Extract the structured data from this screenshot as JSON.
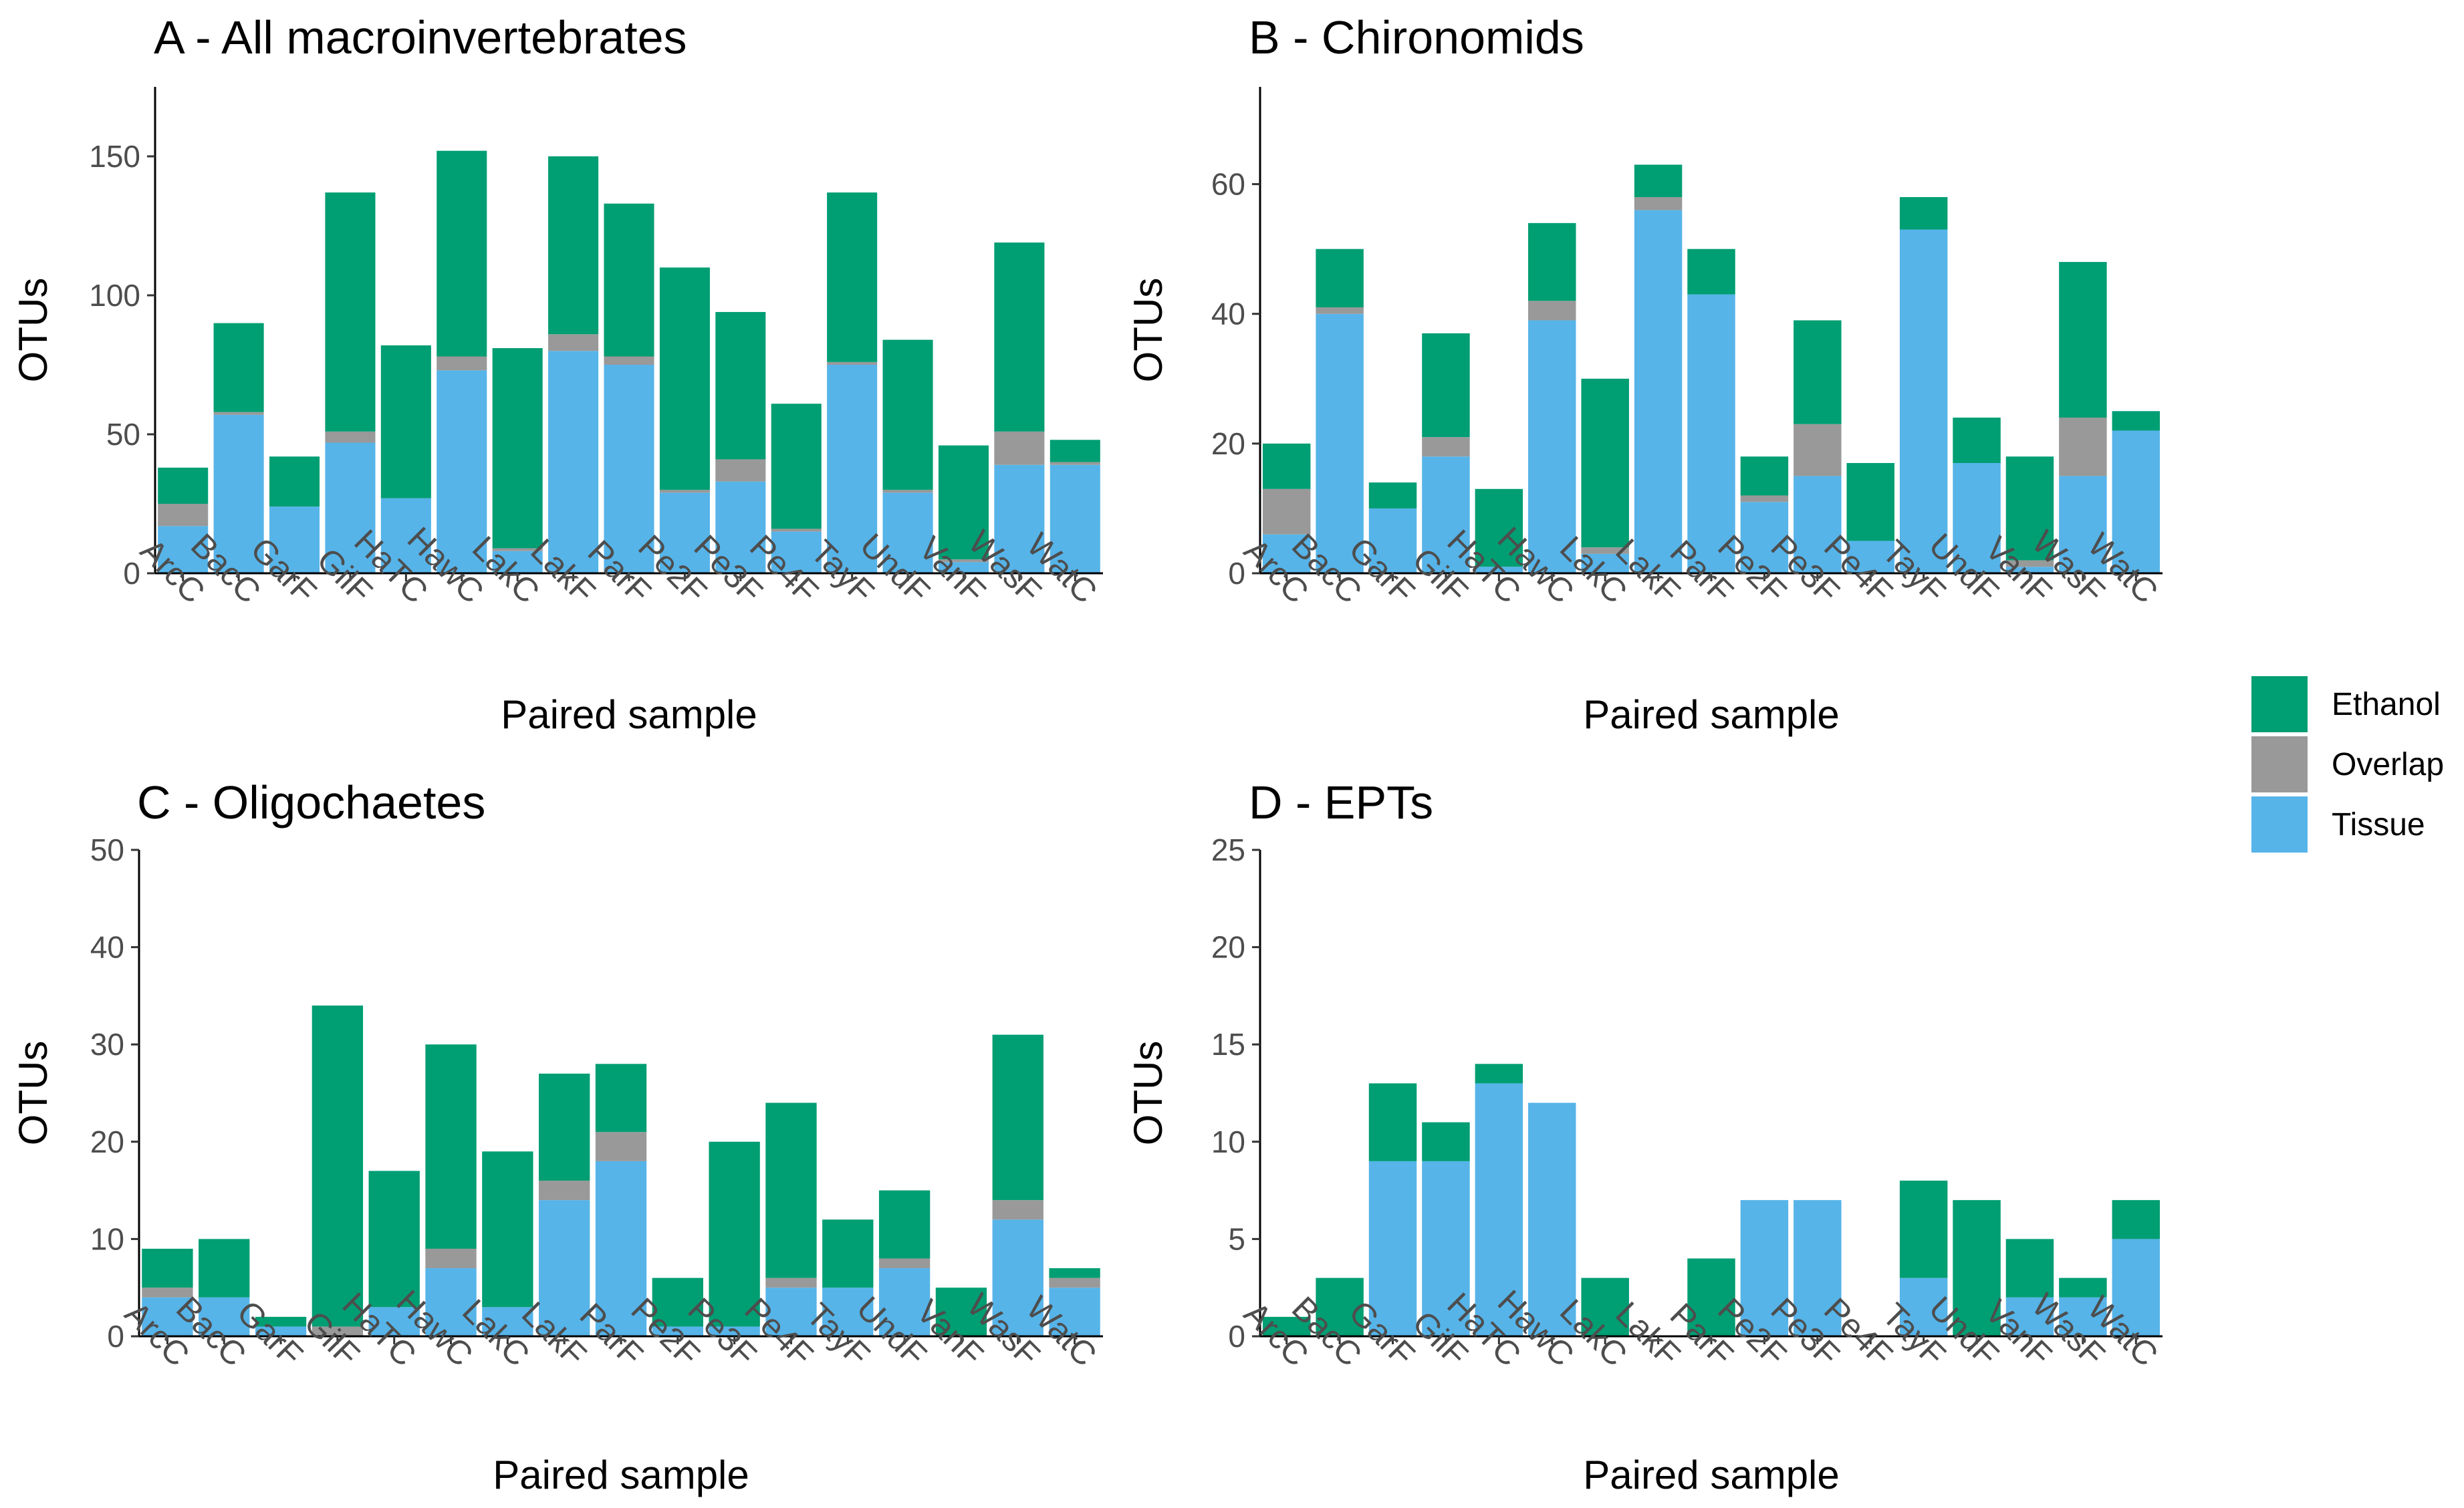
{
  "figure": {
    "legend": {
      "position": "right",
      "items": [
        {
          "name": "Ethanol",
          "color": "#009E73"
        },
        {
          "name": "Overlap",
          "color": "#999999"
        },
        {
          "name": "Tissue",
          "color": "#56B4E9"
        }
      ]
    }
  },
  "chart_data": [
    {
      "type": "bar",
      "stacked": true,
      "title": "A - All macroinvertebrates",
      "xlabel": "Paired sample",
      "ylabel": "OTUs",
      "ylim": [
        0,
        175
      ],
      "yticks": [
        0,
        50,
        100,
        150
      ],
      "categories": [
        "ArcC",
        "BacC",
        "GarF",
        "GilF",
        "HaTC",
        "HawC",
        "LakC",
        "LakF",
        "ParF",
        "Pe2F",
        "Pe3F",
        "Pe4F",
        "TayF",
        "UndF",
        "VanF",
        "WasF",
        "WatC"
      ],
      "series": [
        {
          "name": "Tissue",
          "values": [
            17,
            57,
            24,
            47,
            27,
            73,
            8,
            80,
            75,
            29,
            33,
            15,
            75,
            29,
            4,
            39,
            39
          ]
        },
        {
          "name": "Overlap",
          "values": [
            8,
            1,
            0,
            4,
            0,
            5,
            1,
            6,
            3,
            1,
            8,
            1,
            1,
            1,
            1,
            12,
            1
          ]
        },
        {
          "name": "Ethanol",
          "values": [
            13,
            32,
            18,
            86,
            55,
            74,
            72,
            64,
            55,
            80,
            53,
            45,
            61,
            54,
            41,
            68,
            8
          ]
        }
      ]
    },
    {
      "type": "bar",
      "stacked": true,
      "title": "B - Chironomids",
      "xlabel": "Paired sample",
      "ylabel": "OTUs",
      "ylim": [
        0,
        75
      ],
      "yticks": [
        0,
        20,
        40,
        60
      ],
      "categories": [
        "ArcC",
        "BacC",
        "GarF",
        "GilF",
        "HaTC",
        "HawC",
        "LakC",
        "LakF",
        "ParF",
        "Pe2F",
        "Pe3F",
        "Pe4F",
        "TayF",
        "UndF",
        "VanF",
        "WasF",
        "WatC"
      ],
      "series": [
        {
          "name": "Tissue",
          "values": [
            6,
            40,
            10,
            18,
            1,
            39,
            3,
            56,
            43,
            11,
            15,
            5,
            53,
            17,
            1,
            15,
            22
          ]
        },
        {
          "name": "Overlap",
          "values": [
            7,
            1,
            0,
            3,
            0,
            3,
            1,
            2,
            0,
            1,
            8,
            0,
            0,
            0,
            1,
            9,
            0
          ]
        },
        {
          "name": "Ethanol",
          "values": [
            7,
            9,
            4,
            16,
            12,
            12,
            26,
            5,
            7,
            6,
            16,
            12,
            5,
            7,
            16,
            24,
            3
          ]
        }
      ]
    },
    {
      "type": "bar",
      "stacked": true,
      "title": "C - Oligochaetes",
      "xlabel": "Paired sample",
      "ylabel": "OTUs",
      "ylim": [
        0,
        50
      ],
      "yticks": [
        0,
        10,
        20,
        30,
        40,
        50
      ],
      "categories": [
        "ArcC",
        "BacC",
        "GarF",
        "GilF",
        "HaTC",
        "HawC",
        "LakC",
        "LakF",
        "ParF",
        "Pe2F",
        "Pe3F",
        "Pe4F",
        "TayF",
        "UndF",
        "VanF",
        "WasF",
        "WatC"
      ],
      "series": [
        {
          "name": "Tissue",
          "values": [
            4,
            4,
            1,
            0,
            3,
            7,
            3,
            14,
            18,
            1,
            1,
            5,
            5,
            7,
            0,
            12,
            5
          ]
        },
        {
          "name": "Overlap",
          "values": [
            1,
            0,
            0,
            1,
            0,
            2,
            0,
            2,
            3,
            0,
            0,
            1,
            0,
            1,
            0,
            2,
            1
          ]
        },
        {
          "name": "Ethanol",
          "values": [
            4,
            6,
            1,
            33,
            14,
            21,
            16,
            11,
            7,
            5,
            19,
            18,
            7,
            7,
            5,
            17,
            1
          ]
        }
      ]
    },
    {
      "type": "bar",
      "stacked": true,
      "title": "D - EPTs",
      "xlabel": "Paired sample",
      "ylabel": "OTUs",
      "ylim": [
        0,
        25
      ],
      "yticks": [
        0,
        5,
        10,
        15,
        20,
        25
      ],
      "categories": [
        "ArcC",
        "BacC",
        "GarF",
        "GilF",
        "HaTC",
        "HawC",
        "LakC",
        "LakF",
        "ParF",
        "Pe2F",
        "Pe3F",
        "Pe4F",
        "TayF",
        "UndF",
        "VanF",
        "WasF",
        "WatC"
      ],
      "series": [
        {
          "name": "Tissue",
          "values": [
            0,
            0,
            9,
            9,
            13,
            12,
            0,
            0,
            0,
            7,
            7,
            0,
            3,
            0,
            2,
            2,
            5
          ]
        },
        {
          "name": "Overlap",
          "values": [
            0,
            0,
            0,
            0,
            0,
            0,
            0,
            0,
            0,
            0,
            0,
            0,
            0,
            0,
            0,
            0,
            0
          ]
        },
        {
          "name": "Ethanol",
          "values": [
            1,
            3,
            4,
            2,
            1,
            0,
            3,
            0,
            4,
            0,
            0,
            0,
            5,
            7,
            3,
            1,
            2
          ]
        }
      ]
    }
  ]
}
